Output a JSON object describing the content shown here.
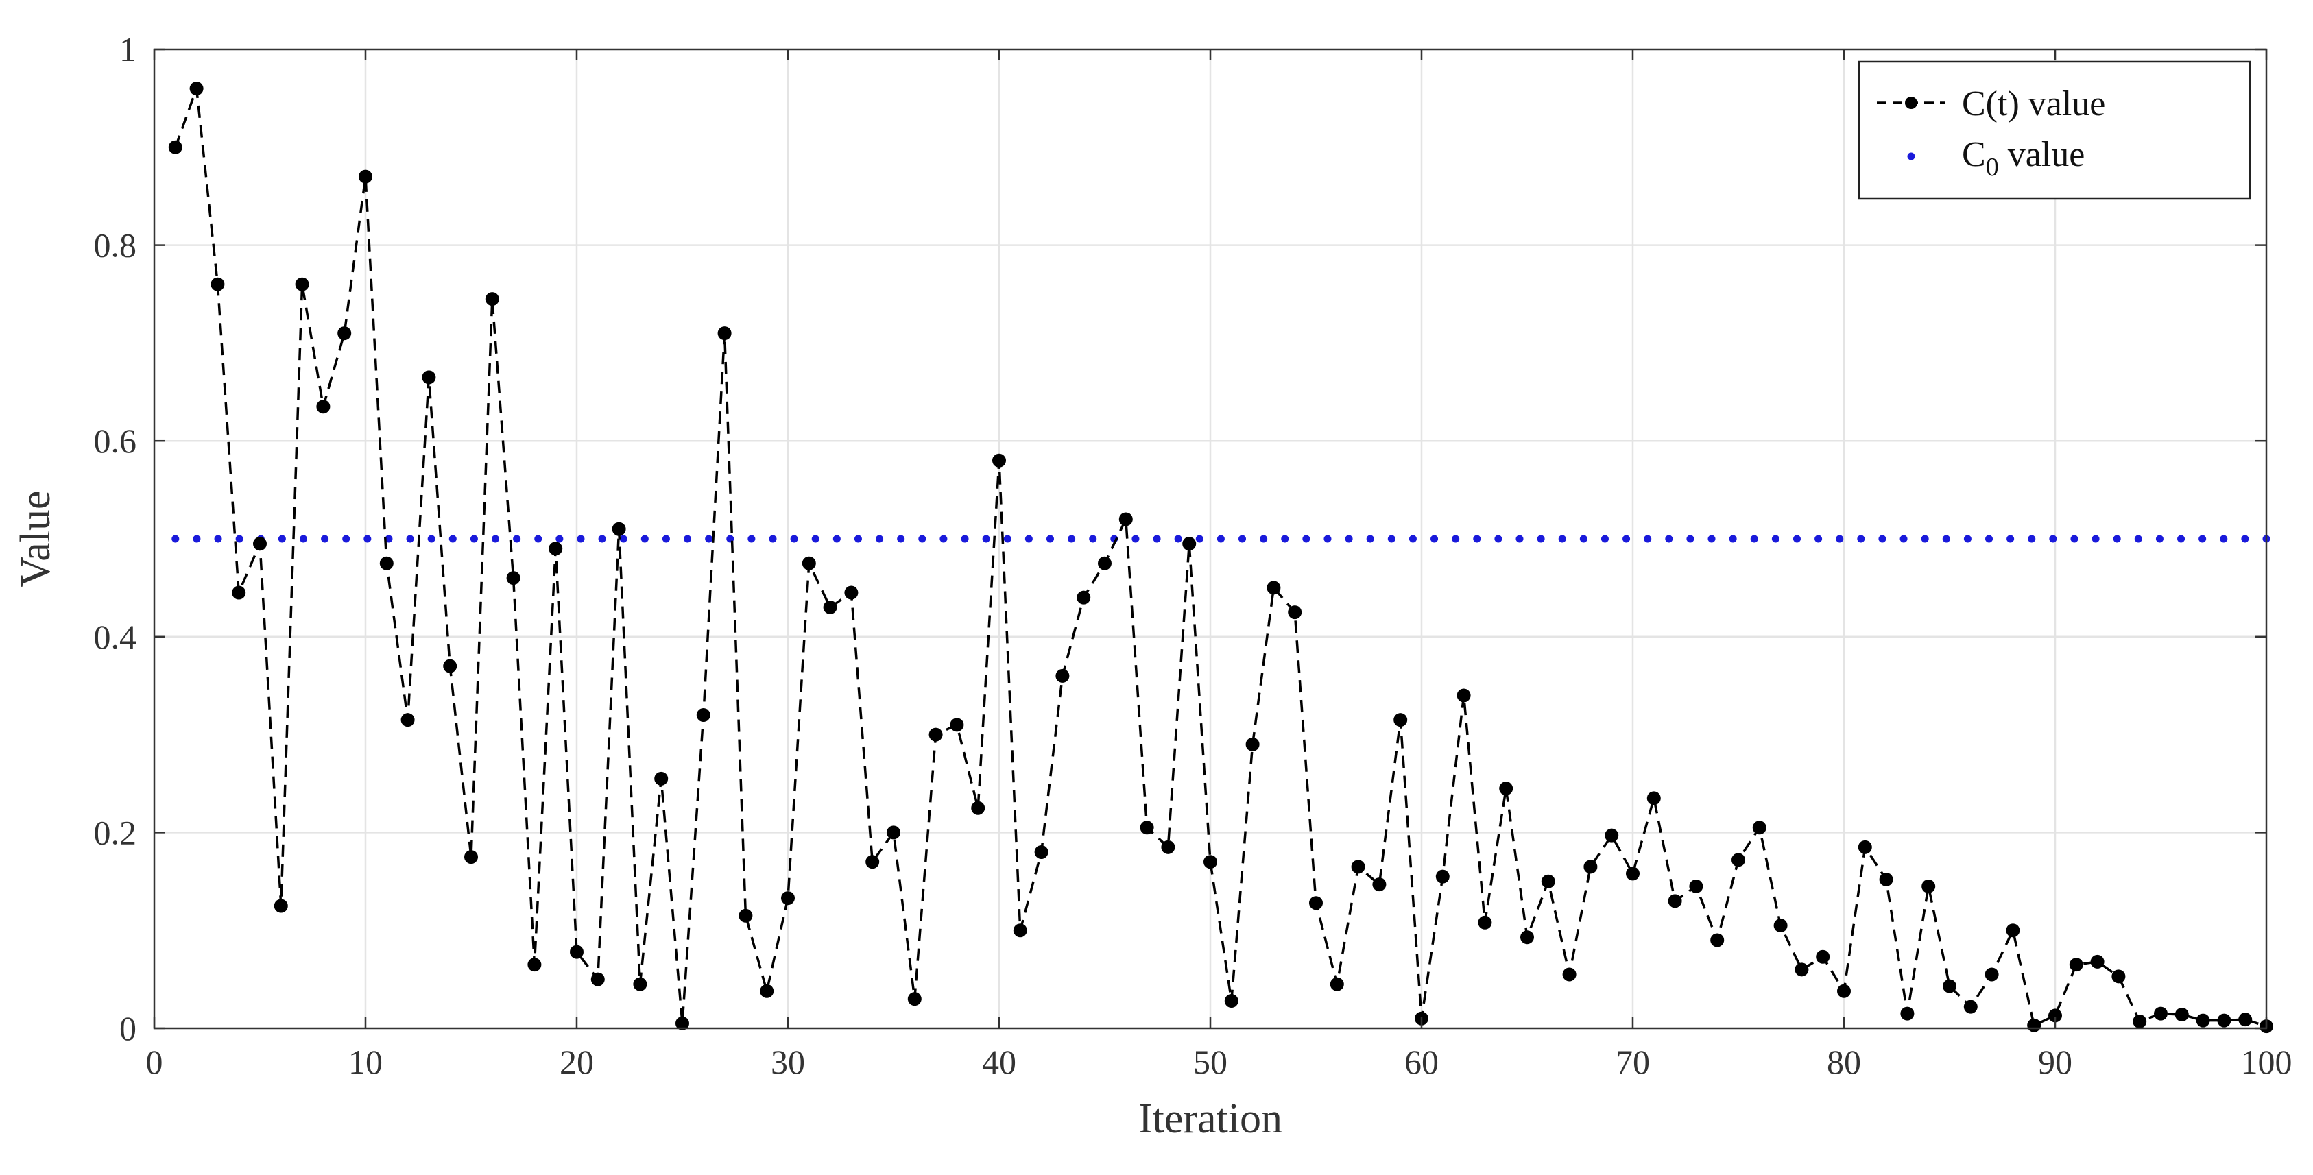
{
  "chart_data": {
    "type": "line",
    "xlabel": "Iteration",
    "ylabel": "Value",
    "xlim": [
      0,
      100
    ],
    "ylim": [
      0,
      1
    ],
    "x_ticks": [
      "0",
      "10",
      "20",
      "30",
      "40",
      "50",
      "60",
      "70",
      "80",
      "90",
      "100"
    ],
    "y_ticks": [
      "0",
      "0.2",
      "0.4",
      "0.6",
      "0.8",
      "1"
    ],
    "grid": true,
    "legend_position": "top-right",
    "series": [
      {
        "name": "C(t) value",
        "line_style": "dashed",
        "marker": "filled-circle",
        "color": "#000000",
        "x": [
          1,
          2,
          3,
          4,
          5,
          6,
          7,
          8,
          9,
          10,
          11,
          12,
          13,
          14,
          15,
          16,
          17,
          18,
          19,
          20,
          21,
          22,
          23,
          24,
          25,
          26,
          27,
          28,
          29,
          30,
          31,
          32,
          33,
          34,
          35,
          36,
          37,
          38,
          39,
          40,
          41,
          42,
          43,
          44,
          45,
          46,
          47,
          48,
          49,
          50,
          51,
          52,
          53,
          54,
          55,
          56,
          57,
          58,
          59,
          60,
          61,
          62,
          63,
          64,
          65,
          66,
          67,
          68,
          69,
          70,
          71,
          72,
          73,
          74,
          75,
          76,
          77,
          78,
          79,
          80,
          81,
          82,
          83,
          84,
          85,
          86,
          87,
          88,
          89,
          90,
          91,
          92,
          93,
          94,
          95,
          96,
          97,
          98,
          99,
          100
        ],
        "values": [
          0.9,
          0.96,
          0.76,
          0.445,
          0.495,
          0.125,
          0.76,
          0.635,
          0.71,
          0.87,
          0.475,
          0.315,
          0.665,
          0.37,
          0.175,
          0.745,
          0.46,
          0.065,
          0.49,
          0.078,
          0.05,
          0.51,
          0.045,
          0.255,
          0.005,
          0.32,
          0.71,
          0.115,
          0.038,
          0.133,
          0.475,
          0.43,
          0.445,
          0.17,
          0.2,
          0.03,
          0.3,
          0.31,
          0.225,
          0.58,
          0.1,
          0.18,
          0.36,
          0.44,
          0.475,
          0.52,
          0.205,
          0.185,
          0.495,
          0.17,
          0.028,
          0.29,
          0.45,
          0.425,
          0.128,
          0.045,
          0.165,
          0.147,
          0.315,
          0.01,
          0.155,
          0.34,
          0.108,
          0.245,
          0.093,
          0.15,
          0.055,
          0.165,
          0.197,
          0.158,
          0.235,
          0.13,
          0.145,
          0.09,
          0.172,
          0.205,
          0.105,
          0.06,
          0.073,
          0.038,
          0.185,
          0.152,
          0.015,
          0.145,
          0.043,
          0.022,
          0.055,
          0.1,
          0.003,
          0.013,
          0.065,
          0.068,
          0.053,
          0.007,
          0.015,
          0.014,
          0.008,
          0.008,
          0.009,
          0.002
        ]
      },
      {
        "name": "C0 value",
        "legend_main": "C",
        "legend_sub": "0",
        "legend_rest": " value",
        "line_style": "dotted",
        "color": "#1a1adb",
        "x": [
          1,
          100
        ],
        "values": [
          0.5,
          0.5
        ]
      }
    ]
  }
}
